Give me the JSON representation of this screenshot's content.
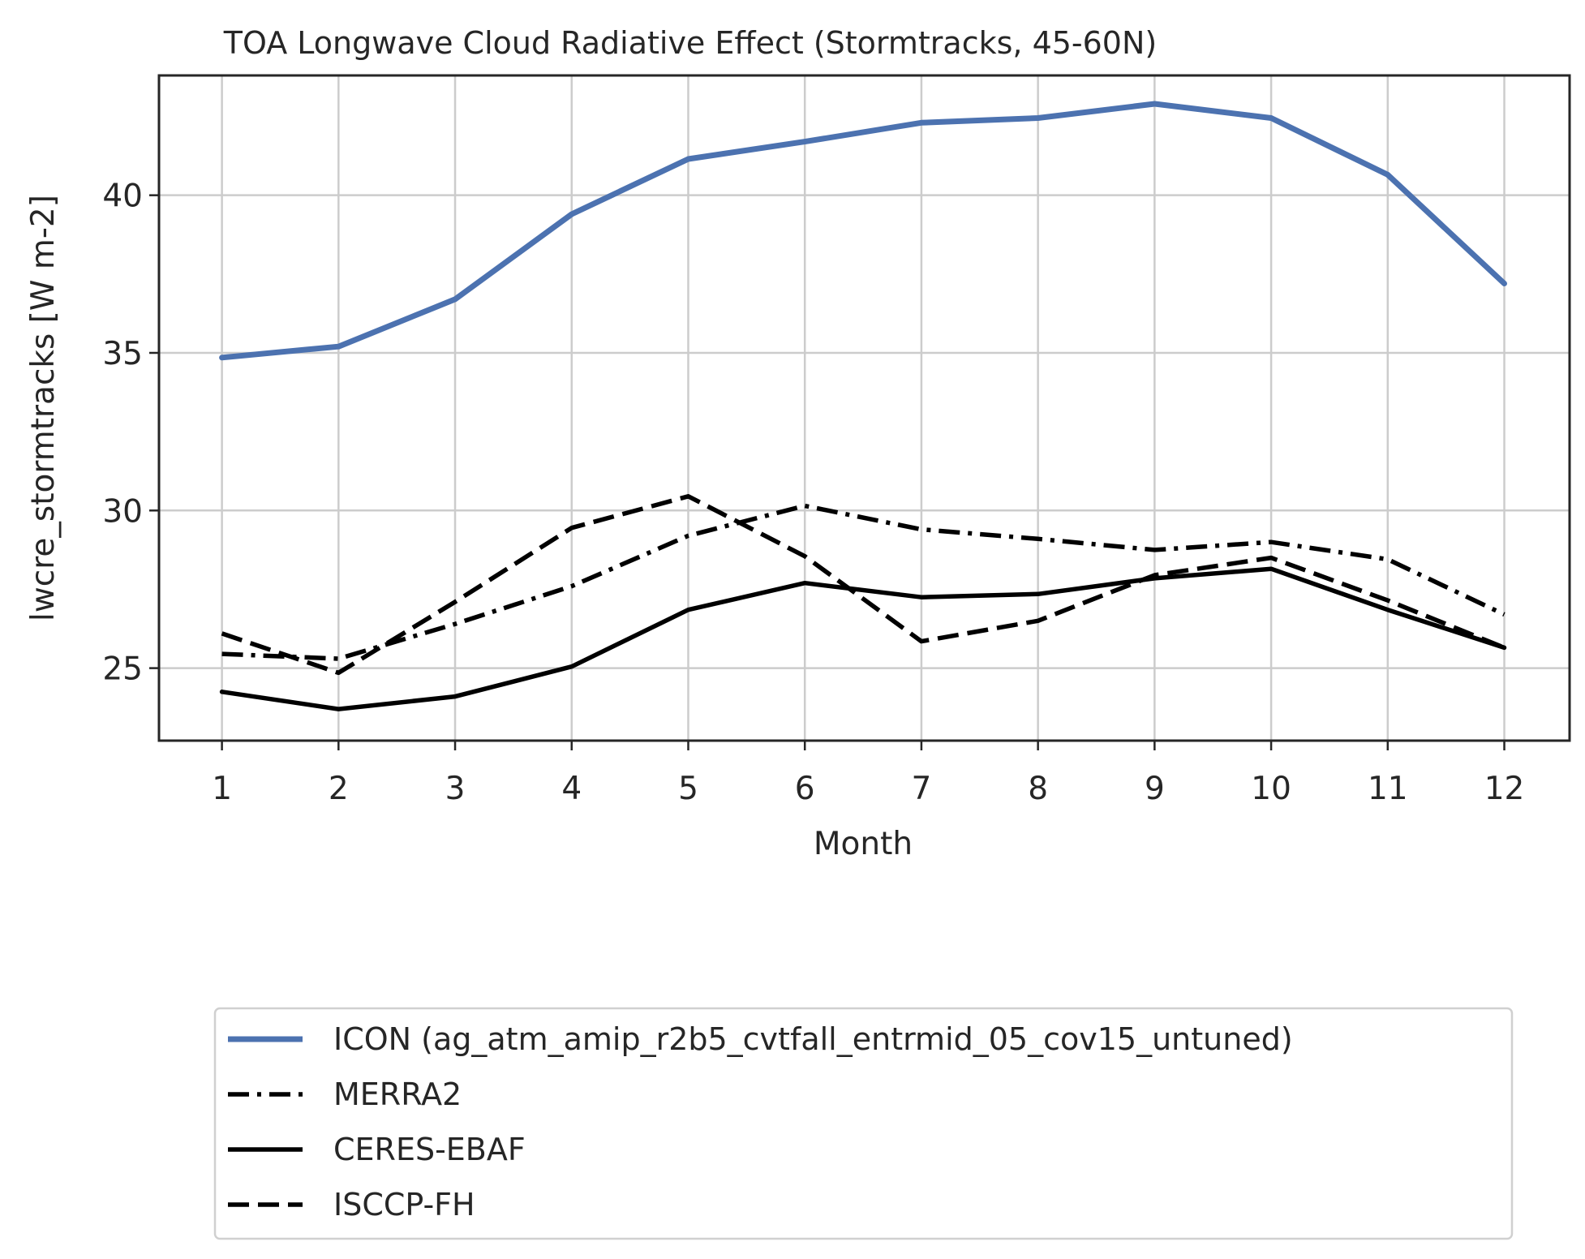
{
  "chart_data": {
    "type": "line",
    "title": "TOA Longwave Cloud Radiative Effect (Stormtracks, 45-60N)",
    "xlabel": "Month",
    "ylabel": "lwcre_stormtracks [W m-2]",
    "x": [
      1,
      2,
      3,
      4,
      5,
      6,
      7,
      8,
      9,
      10,
      11,
      12
    ],
    "xticks": [
      "1",
      "2",
      "3",
      "4",
      "5",
      "6",
      "7",
      "8",
      "9",
      "10",
      "11",
      "12"
    ],
    "yticks": [
      "25",
      "30",
      "35",
      "40"
    ],
    "xlim": [
      0.46,
      12.56
    ],
    "ylim": [
      22.7,
      43.8
    ],
    "grid": true,
    "legend_position": "below plot",
    "series": [
      {
        "name": "ICON (ag_atm_amip_r2b5_cvtfall_entrmid_05_cov15_untuned)",
        "color": "#4c72b0",
        "style": "solid",
        "values": [
          34.85,
          35.2,
          36.7,
          39.4,
          41.15,
          41.7,
          42.3,
          42.45,
          42.9,
          42.45,
          40.65,
          37.2
        ]
      },
      {
        "name": "MERRA2",
        "color": "#000000",
        "style": "dashdot",
        "values": [
          25.45,
          25.3,
          26.4,
          27.6,
          29.2,
          30.15,
          29.4,
          29.1,
          28.75,
          29.0,
          28.45,
          26.7
        ]
      },
      {
        "name": "CERES-EBAF",
        "color": "#000000",
        "style": "solid",
        "values": [
          24.25,
          23.7,
          24.1,
          25.05,
          26.85,
          27.7,
          27.25,
          27.35,
          27.85,
          28.15,
          26.85,
          25.65
        ]
      },
      {
        "name": "ISCCP-FH",
        "color": "#000000",
        "style": "dashed",
        "values": [
          26.1,
          24.85,
          27.1,
          29.45,
          30.45,
          28.55,
          25.85,
          26.5,
          27.95,
          28.5,
          27.15,
          25.65
        ]
      }
    ]
  }
}
